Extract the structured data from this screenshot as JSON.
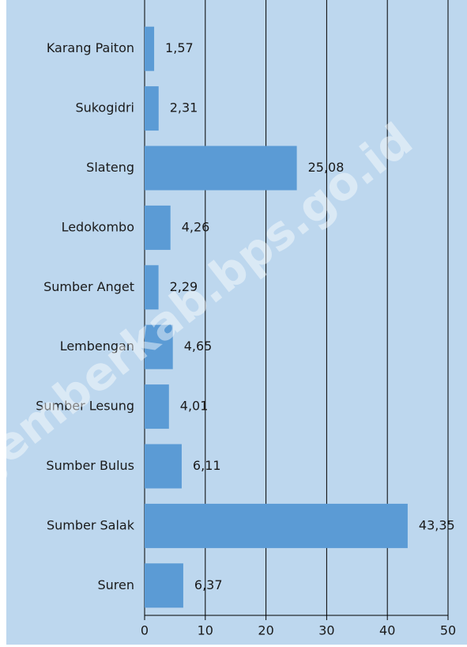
{
  "chart_data": {
    "type": "bar",
    "orientation": "horizontal",
    "categories": [
      "Karang Paiton",
      "Sukogidri",
      "Slateng",
      "Ledokombo",
      "Sumber Anget",
      "Lembengan",
      "Sumber Lesung",
      "Sumber Bulus",
      "Sumber Salak",
      "Suren"
    ],
    "values": [
      1.57,
      2.31,
      25.08,
      4.26,
      2.29,
      4.65,
      4.01,
      6.11,
      43.35,
      6.37
    ],
    "value_labels": [
      "1,57",
      "2,31",
      "25,08",
      "4,26",
      "2,29",
      "4,65",
      "4,01",
      "6,11",
      "43,35",
      "6,37"
    ],
    "color": "#5b9bd5",
    "xlim": [
      0,
      50
    ],
    "xticks": [
      0,
      10,
      20,
      30,
      40,
      50
    ],
    "grid": true,
    "watermark": "jemberkab.bps.go.id"
  }
}
